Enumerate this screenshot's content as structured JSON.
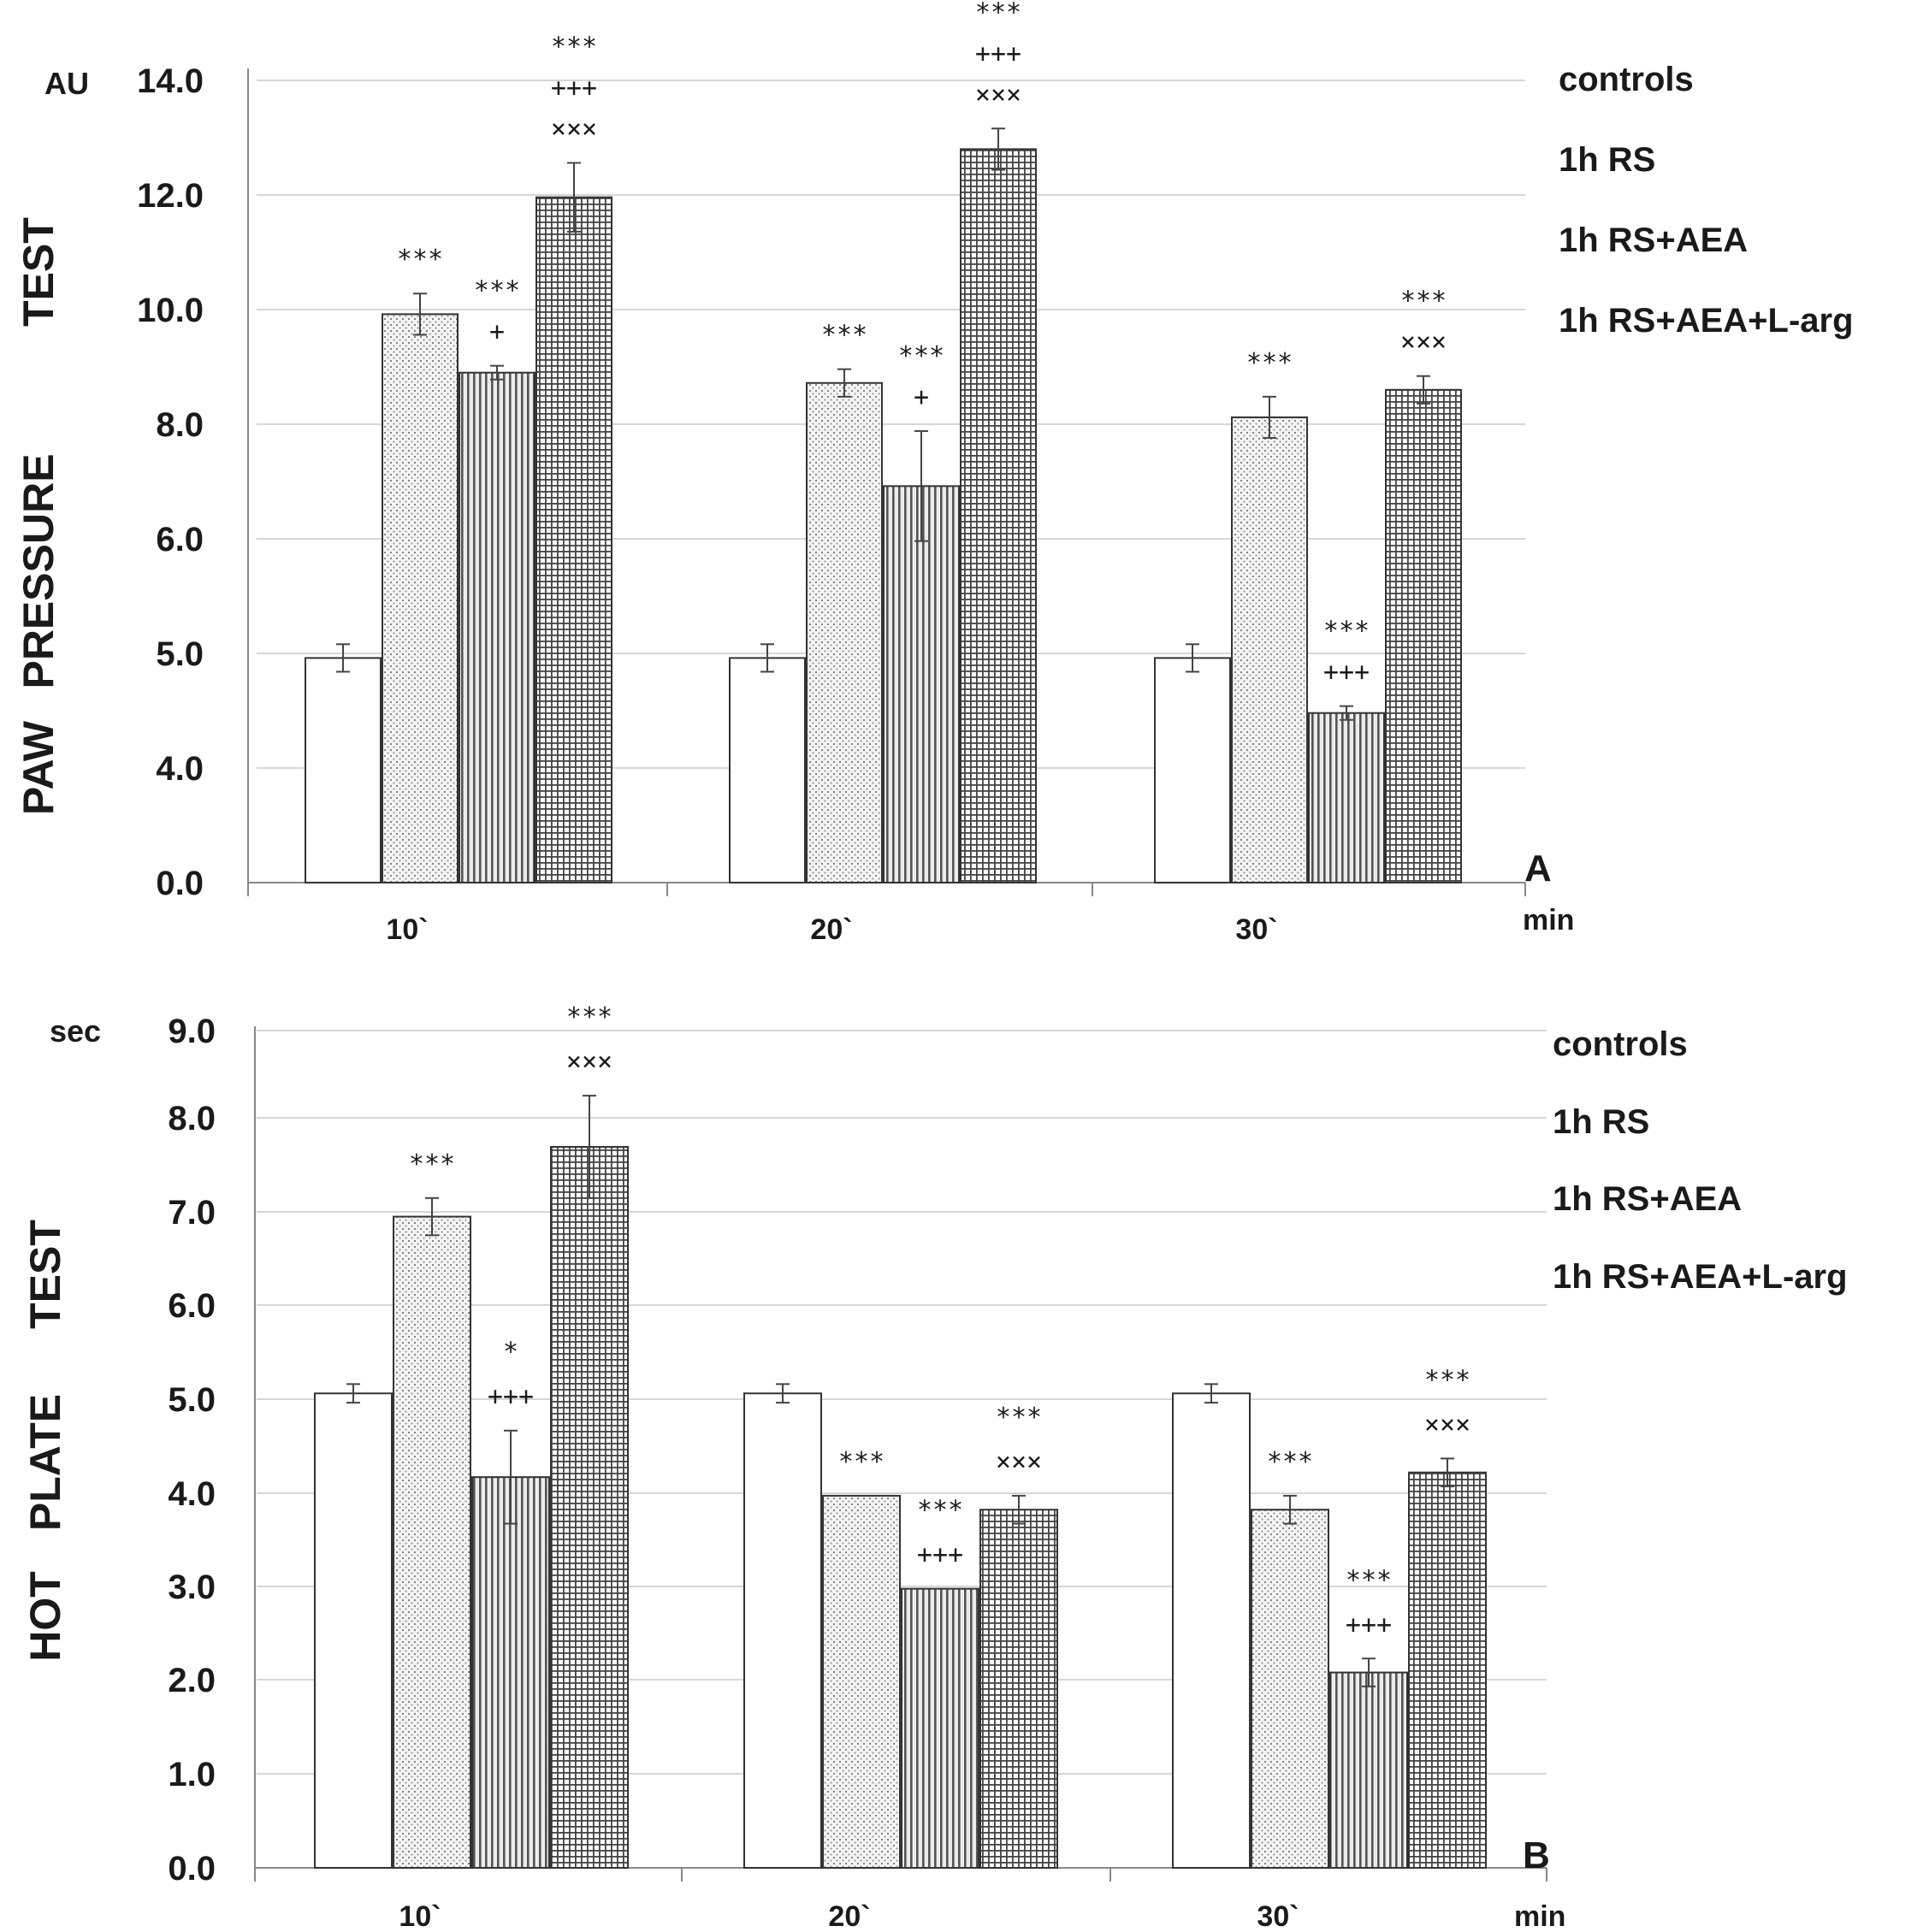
{
  "chart_data": [
    {
      "panel_label": "A",
      "type": "bar",
      "unit": "AU",
      "ylabel": [
        "TEST",
        "PRESSURE",
        "PAW"
      ],
      "xlabel": "min",
      "yticks": [
        "0.0",
        "4.0",
        "5.0",
        "6.0",
        "8.0",
        "10.0",
        "12.0",
        "14.0"
      ],
      "categories": [
        "10`",
        "20`",
        "30`"
      ],
      "series": [
        {
          "name": "controls",
          "values": [
            5.6,
            5.6,
            5.6
          ],
          "errors": [
            0.2,
            0.2,
            0.2
          ],
          "pattern": "none"
        },
        {
          "name": "1h RS",
          "values": [
            10.6,
            9.6,
            9.1
          ],
          "errors": [
            0.3,
            0.2,
            0.3
          ],
          "pattern": "dots"
        },
        {
          "name": "1h RS+AEA",
          "values": [
            9.75,
            8.1,
            4.8
          ],
          "errors": [
            0.1,
            0.8,
            0.1
          ],
          "pattern": "vlines"
        },
        {
          "name": "1h RS+AEA+L-arg",
          "values": [
            12.3,
            13.0,
            9.5
          ],
          "errors": [
            0.5,
            0.3,
            0.2
          ],
          "pattern": "grid"
        }
      ],
      "annotations": [
        {
          "category": 0,
          "series": 1,
          "lines": [
            "***"
          ]
        },
        {
          "category": 0,
          "series": 2,
          "lines": [
            "***",
            "+"
          ]
        },
        {
          "category": 0,
          "series": 3,
          "lines": [
            "***",
            "+++",
            "×××"
          ]
        },
        {
          "category": 1,
          "series": 1,
          "lines": [
            "***"
          ]
        },
        {
          "category": 1,
          "series": 2,
          "lines": [
            "***",
            "+"
          ]
        },
        {
          "category": 1,
          "series": 3,
          "lines": [
            "***",
            "+++",
            "×××"
          ]
        },
        {
          "category": 2,
          "series": 1,
          "lines": [
            "***"
          ]
        },
        {
          "category": 2,
          "series": 2,
          "lines": [
            "***",
            "+++"
          ]
        },
        {
          "category": 2,
          "series": 3,
          "lines": [
            "***",
            "×××"
          ]
        }
      ]
    },
    {
      "panel_label": "B",
      "type": "bar",
      "unit": "sec",
      "ylabel": [
        "TEST",
        "PLATE",
        "HOT"
      ],
      "xlabel": "min",
      "yticks": [
        "0.0",
        "1.0",
        "2.0",
        "3.0",
        "4.0",
        "5.0",
        "6.0",
        "7.0",
        "8.0",
        "9.0"
      ],
      "categories": [
        "10`",
        "20`",
        "30`"
      ],
      "series": [
        {
          "name": "controls",
          "values": [
            5.1,
            5.1,
            5.1
          ],
          "errors": [
            0.1,
            0.1,
            0.1
          ],
          "pattern": "none"
        },
        {
          "name": "1h RS",
          "values": [
            7.0,
            4.0,
            3.85
          ],
          "errors": [
            0.2,
            0.0,
            0.15
          ],
          "pattern": "dots"
        },
        {
          "name": "1h RS+AEA",
          "values": [
            4.2,
            3.0,
            2.1
          ],
          "errors": [
            0.5,
            0.0,
            0.15
          ],
          "pattern": "vlines"
        },
        {
          "name": "1h RS+AEA+L-arg",
          "values": [
            7.75,
            3.85,
            4.25
          ],
          "errors": [
            0.55,
            0.15,
            0.15
          ],
          "pattern": "grid"
        }
      ],
      "annotations": [
        {
          "category": 0,
          "series": 1,
          "lines": [
            "***"
          ]
        },
        {
          "category": 0,
          "series": 2,
          "lines": [
            "*",
            "+++"
          ]
        },
        {
          "category": 0,
          "series": 3,
          "lines": [
            "***",
            "×××"
          ]
        },
        {
          "category": 1,
          "series": 1,
          "lines": [
            "***"
          ]
        },
        {
          "category": 1,
          "series": 2,
          "lines": [
            "***",
            "+++"
          ]
        },
        {
          "category": 1,
          "series": 3,
          "lines": [
            "***",
            "×××"
          ]
        },
        {
          "category": 2,
          "series": 1,
          "lines": [
            "***"
          ]
        },
        {
          "category": 2,
          "series": 2,
          "lines": [
            "***",
            "+++"
          ]
        },
        {
          "category": 2,
          "series": 3,
          "lines": [
            "***",
            "×××"
          ]
        }
      ]
    }
  ]
}
